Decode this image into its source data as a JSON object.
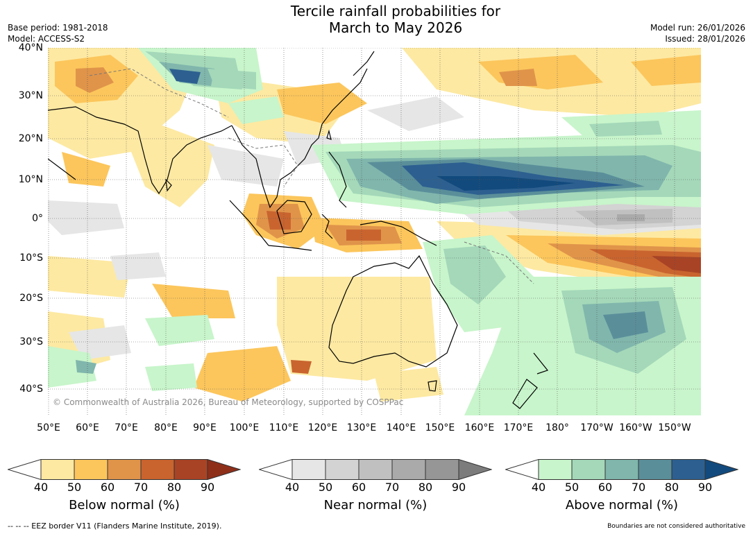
{
  "title": {
    "line1": "Tercile rainfall probabilities for",
    "line2": "March to May 2026"
  },
  "meta": {
    "base_period": "Base period: 1981-2018",
    "model": "Model: ACCESS-S2",
    "model_run": "Model run: 26/01/2026",
    "issued": "Issued: 28/01/2026"
  },
  "map": {
    "lat_labels": [
      "40°N",
      "30°N",
      "20°N",
      "10°N",
      "0°",
      "10°S",
      "20°S",
      "30°S",
      "40°S"
    ],
    "lon_labels": [
      "50°E",
      "60°E",
      "70°E",
      "80°E",
      "90°E",
      "100°E",
      "110°E",
      "120°E",
      "130°E",
      "140°E",
      "150°E",
      "160°E",
      "170°E",
      "180°",
      "170°W",
      "160°W",
      "150°W"
    ],
    "copyright": "© Commonwealth of Australia 2026, Bureau of Meteorology, supported by COSPPac"
  },
  "colors": {
    "below": [
      "#ffffff",
      "#fde9a2",
      "#fcc65c",
      "#e0944a",
      "#c9642f",
      "#a94325",
      "#8e2f1a"
    ],
    "near": [
      "#ffffff",
      "#e6e6e6",
      "#d3d3d3",
      "#c0c0c0",
      "#aaaaaa",
      "#969696",
      "#7c7c7c"
    ],
    "above": [
      "#ffffff",
      "#c8f5cb",
      "#a4d8b9",
      "#80b6ac",
      "#5a8f9a",
      "#2d6090",
      "#124a7d"
    ]
  },
  "legends": [
    {
      "label": "Below normal (%)",
      "ticks": [
        "40",
        "50",
        "60",
        "70",
        "80",
        "90"
      ]
    },
    {
      "label": "Near normal (%)",
      "ticks": [
        "40",
        "50",
        "60",
        "70",
        "80",
        "90"
      ]
    },
    {
      "label": "Above normal (%)",
      "ticks": [
        "40",
        "50",
        "60",
        "70",
        "80",
        "90"
      ]
    }
  ],
  "footer": {
    "eez": "--  --  -- EEZ border V11 (Flanders Marine Institute, 2019).",
    "boundaries": "Boundaries are not considered authoritative"
  }
}
